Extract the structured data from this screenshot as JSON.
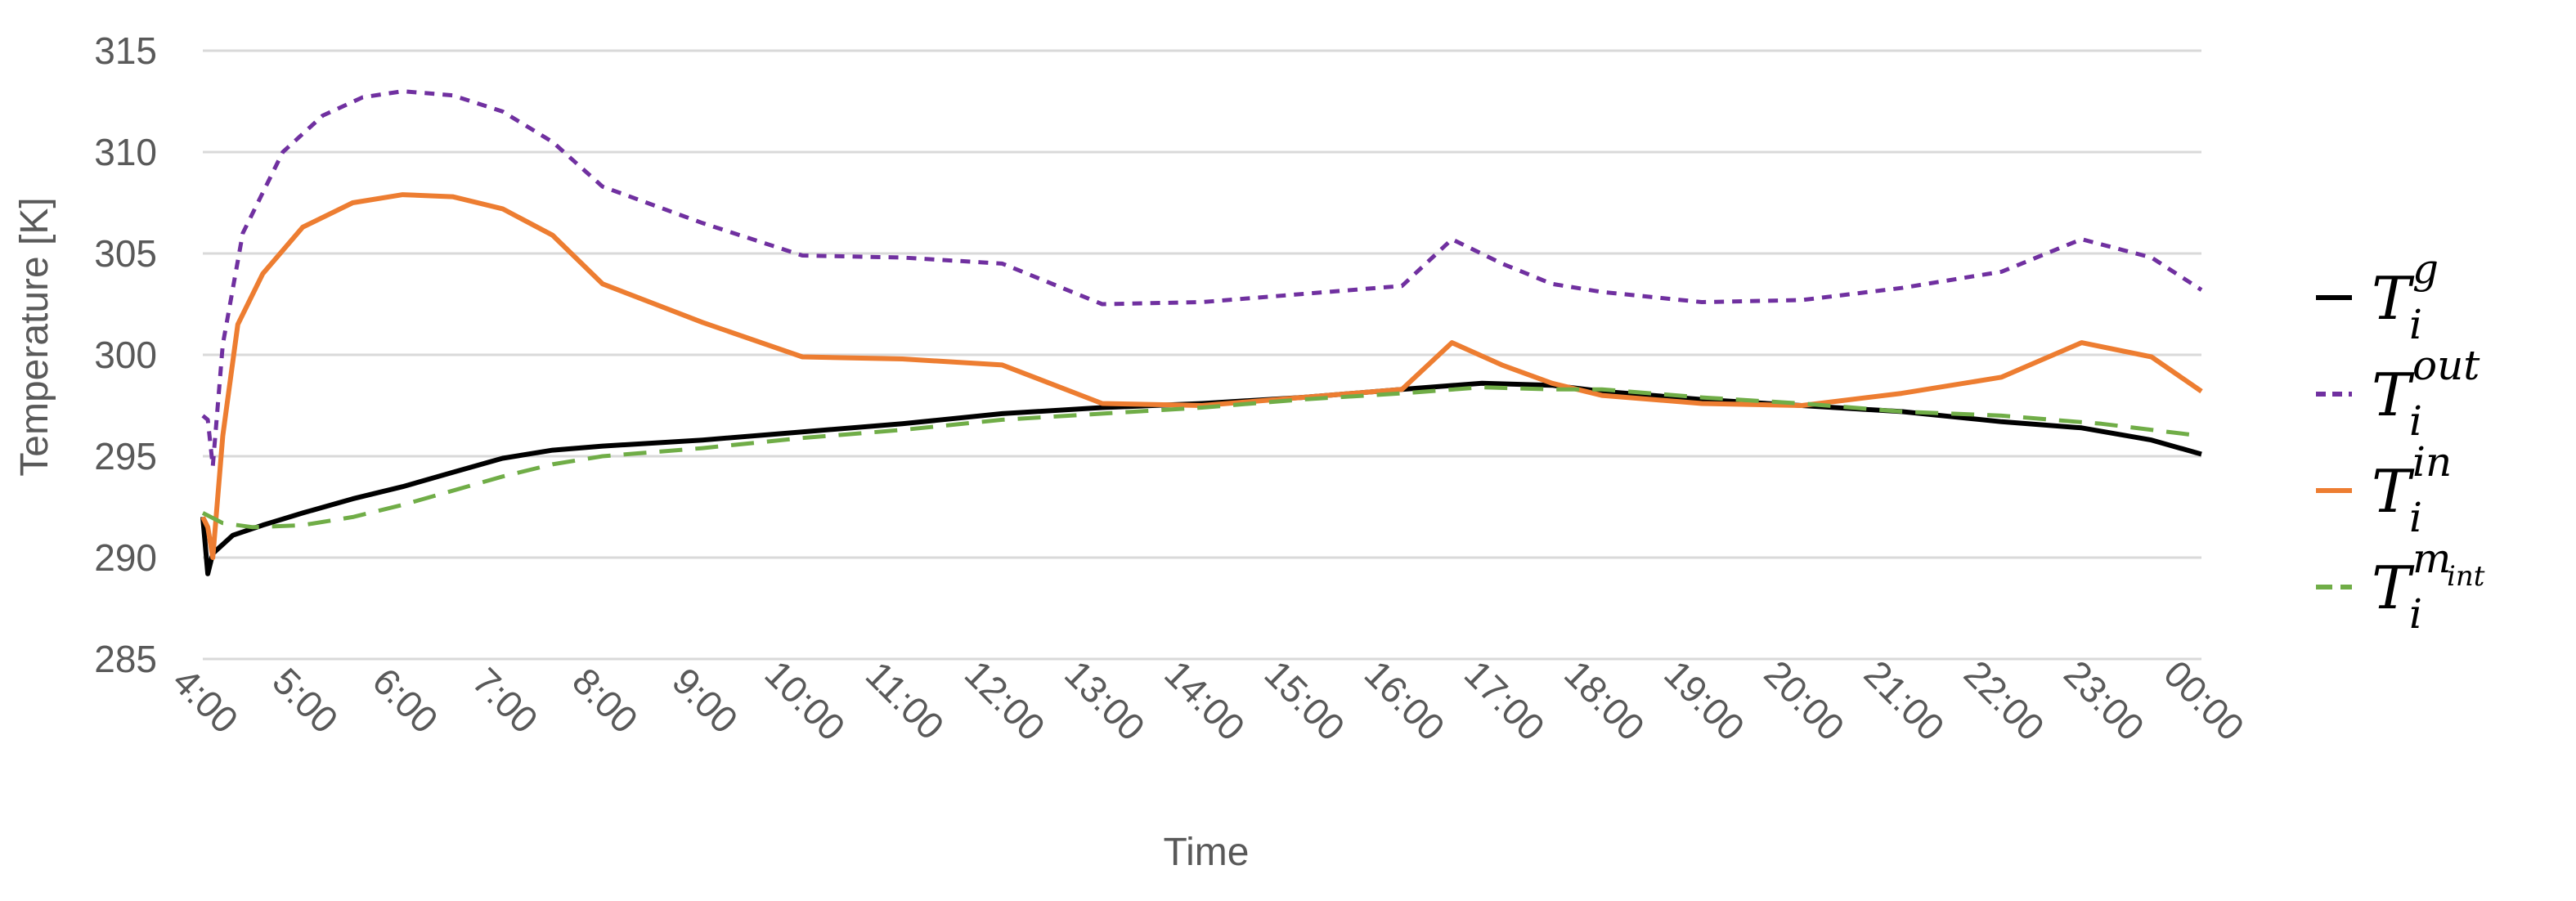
{
  "chart_data": {
    "type": "line",
    "xlabel": "Time",
    "ylabel": "Temperature [K]",
    "ylim": [
      285,
      315
    ],
    "yticks": [
      285,
      290,
      295,
      300,
      305,
      310,
      315
    ],
    "xlim": [
      4,
      24
    ],
    "xtick_labels": [
      "4:00",
      "5:00",
      "6:00",
      "7:00",
      "8:00",
      "9:00",
      "10:00",
      "11:00",
      "12:00",
      "13:00",
      "14:00",
      "15:00",
      "16:00",
      "17:00",
      "18:00",
      "19:00",
      "20:00",
      "21:00",
      "22:00",
      "23:00",
      "00:00"
    ],
    "grid": "horizontal",
    "legend_position": "right",
    "series": [
      {
        "name": "T_i^g",
        "legend": {
          "base": "T",
          "sub": "i",
          "sup": "g",
          "sup_sub": ""
        },
        "color": "#000000",
        "dash": "solid",
        "x": [
          4.0,
          4.05,
          4.1,
          4.3,
          4.6,
          5.0,
          5.5,
          6.0,
          6.5,
          7.0,
          7.5,
          8.0,
          9.0,
          10.0,
          11.0,
          12.0,
          13.0,
          14.0,
          15.0,
          16.0,
          16.8,
          17.5,
          18.0,
          19.0,
          20.0,
          21.0,
          22.0,
          22.8,
          23.5,
          24.0
        ],
        "y": [
          292,
          289.2,
          290.2,
          291.1,
          291.6,
          292.2,
          292.9,
          293.5,
          294.2,
          294.9,
          295.3,
          295.5,
          295.8,
          296.2,
          296.6,
          297.1,
          297.4,
          297.6,
          297.9,
          298.3,
          298.6,
          298.5,
          298.2,
          297.8,
          297.5,
          297.2,
          296.7,
          296.4,
          295.8,
          295.1
        ]
      },
      {
        "name": "T_i^out",
        "legend": {
          "base": "T",
          "sub": "i",
          "sup": "out",
          "sup_sub": ""
        },
        "color": "#7030a0",
        "dash": "short",
        "x": [
          4.0,
          4.05,
          4.1,
          4.2,
          4.4,
          4.8,
          5.2,
          5.6,
          6.0,
          6.5,
          7.0,
          7.5,
          8.0,
          9.0,
          10.0,
          11.0,
          12.0,
          13.0,
          14.0,
          15.0,
          16.0,
          16.5,
          17.0,
          17.5,
          18.0,
          19.0,
          20.0,
          21.0,
          22.0,
          22.8,
          23.5,
          24.0
        ],
        "y": [
          297,
          296.8,
          294.5,
          300.5,
          306,
          310,
          311.8,
          312.7,
          313.0,
          312.8,
          312,
          310.5,
          308.3,
          306.5,
          304.9,
          304.8,
          304.5,
          302.5,
          302.6,
          303,
          303.4,
          305.7,
          304.5,
          303.5,
          303.1,
          302.6,
          302.7,
          303.3,
          304.1,
          305.7,
          304.8,
          303.2
        ]
      },
      {
        "name": "T_i^in",
        "legend": {
          "base": "T",
          "sub": "i",
          "sup": "in",
          "sup_sub": ""
        },
        "color": "#ed7d31",
        "dash": "solid",
        "x": [
          4.0,
          4.05,
          4.1,
          4.2,
          4.35,
          4.6,
          5.0,
          5.5,
          6.0,
          6.5,
          7.0,
          7.5,
          8.0,
          9.0,
          10.0,
          11.0,
          12.0,
          13.0,
          14.0,
          15.0,
          16.0,
          16.5,
          17.0,
          17.5,
          18.0,
          19.0,
          20.0,
          21.0,
          22.0,
          22.8,
          23.5,
          24.0
        ],
        "y": [
          292,
          291.5,
          290,
          296,
          301.5,
          304,
          306.3,
          307.5,
          307.9,
          307.8,
          307.2,
          305.9,
          303.5,
          301.6,
          299.9,
          299.8,
          299.5,
          297.6,
          297.5,
          297.9,
          298.3,
          300.6,
          299.5,
          298.6,
          298.0,
          297.6,
          297.5,
          298.1,
          298.9,
          300.6,
          299.9,
          298.2
        ]
      },
      {
        "name": "T_i^m_int",
        "legend": {
          "base": "T",
          "sub": "i",
          "sup": "m",
          "sup_sub": "int"
        },
        "color": "#70ad47",
        "dash": "long",
        "x": [
          4.0,
          4.2,
          4.5,
          5.0,
          5.5,
          6.0,
          6.5,
          7.0,
          7.5,
          8.0,
          9.0,
          10.0,
          11.0,
          12.0,
          13.0,
          14.0,
          15.0,
          16.0,
          16.8,
          17.5,
          18.0,
          19.0,
          20.0,
          21.0,
          22.0,
          23.0,
          24.0
        ],
        "y": [
          292.2,
          291.7,
          291.5,
          291.6,
          292.0,
          292.6,
          293.3,
          294.0,
          294.6,
          295.0,
          295.4,
          295.9,
          296.3,
          296.8,
          297.1,
          297.4,
          297.8,
          298.1,
          298.4,
          298.3,
          298.3,
          297.9,
          297.6,
          297.2,
          297.0,
          296.6,
          296.0
        ]
      }
    ]
  }
}
